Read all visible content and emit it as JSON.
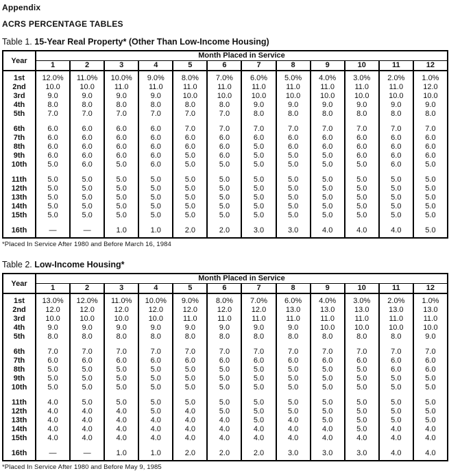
{
  "page": {
    "appendix_label": "Appendix",
    "main_heading": "ACRS PERCENTAGE TABLES"
  },
  "tables": [
    {
      "caption_prefix": "Table 1.",
      "caption_title": "15-Year Real Property* (Other Than Low-Income Housing)",
      "year_header": "Year",
      "month_header": "Month Placed in Service",
      "month_columns": [
        "1",
        "2",
        "3",
        "4",
        "5",
        "6",
        "7",
        "8",
        "9",
        "10",
        "11",
        "12"
      ],
      "row_groups": [
        {
          "rows": [
            {
              "label": "1st",
              "values": [
                "12.0%",
                "11.0%",
                "10.0%",
                "9.0%",
                "8.0%",
                "7.0%",
                "6.0%",
                "5.0%",
                "4.0%",
                "3.0%",
                "2.0%",
                "1.0%"
              ]
            },
            {
              "label": "2nd",
              "values": [
                "10.0",
                "10.0",
                "11.0",
                "11.0",
                "11.0",
                "11.0",
                "11.0",
                "11.0",
                "11.0",
                "11.0",
                "11.0",
                "12.0"
              ]
            },
            {
              "label": "3rd",
              "values": [
                "9.0",
                "9.0",
                "9.0",
                "9.0",
                "10.0",
                "10.0",
                "10.0",
                "10.0",
                "10.0",
                "10.0",
                "10.0",
                "10.0"
              ]
            },
            {
              "label": "4th",
              "values": [
                "8.0",
                "8.0",
                "8.0",
                "8.0",
                "8.0",
                "8.0",
                "9.0",
                "9.0",
                "9.0",
                "9.0",
                "9.0",
                "9.0"
              ]
            },
            {
              "label": "5th",
              "values": [
                "7.0",
                "7.0",
                "7.0",
                "7.0",
                "7.0",
                "7.0",
                "8.0",
                "8.0",
                "8.0",
                "8.0",
                "8.0",
                "8.0"
              ]
            }
          ]
        },
        {
          "rows": [
            {
              "label": "6th",
              "values": [
                "6.0",
                "6.0",
                "6.0",
                "6.0",
                "7.0",
                "7.0",
                "7.0",
                "7.0",
                "7.0",
                "7.0",
                "7.0",
                "7.0"
              ]
            },
            {
              "label": "7th",
              "values": [
                "6.0",
                "6.0",
                "6.0",
                "6.0",
                "6.0",
                "6.0",
                "6.0",
                "6.0",
                "6.0",
                "6.0",
                "6.0",
                "6.0"
              ]
            },
            {
              "label": "8th",
              "values": [
                "6.0",
                "6.0",
                "6.0",
                "6.0",
                "6.0",
                "6.0",
                "5.0",
                "6.0",
                "6.0",
                "6.0",
                "6.0",
                "6.0"
              ]
            },
            {
              "label": "9th",
              "values": [
                "6.0",
                "6.0",
                "6.0",
                "6.0",
                "5.0",
                "6.0",
                "5.0",
                "5.0",
                "5.0",
                "6.0",
                "6.0",
                "6.0"
              ]
            },
            {
              "label": "10th",
              "values": [
                "5.0",
                "6.0",
                "5.0",
                "6.0",
                "5.0",
                "5.0",
                "5.0",
                "5.0",
                "5.0",
                "5.0",
                "6.0",
                "5.0"
              ]
            }
          ]
        },
        {
          "rows": [
            {
              "label": "11th",
              "values": [
                "5.0",
                "5.0",
                "5.0",
                "5.0",
                "5.0",
                "5.0",
                "5.0",
                "5.0",
                "5.0",
                "5.0",
                "5.0",
                "5.0"
              ]
            },
            {
              "label": "12th",
              "values": [
                "5.0",
                "5.0",
                "5.0",
                "5.0",
                "5.0",
                "5.0",
                "5.0",
                "5.0",
                "5.0",
                "5.0",
                "5.0",
                "5.0"
              ]
            },
            {
              "label": "13th",
              "values": [
                "5.0",
                "5.0",
                "5.0",
                "5.0",
                "5.0",
                "5.0",
                "5.0",
                "5.0",
                "5.0",
                "5.0",
                "5.0",
                "5.0"
              ]
            },
            {
              "label": "14th",
              "values": [
                "5.0",
                "5.0",
                "5.0",
                "5.0",
                "5.0",
                "5.0",
                "5.0",
                "5.0",
                "5.0",
                "5.0",
                "5.0",
                "5.0"
              ]
            },
            {
              "label": "15th",
              "values": [
                "5.0",
                "5.0",
                "5.0",
                "5.0",
                "5.0",
                "5.0",
                "5.0",
                "5.0",
                "5.0",
                "5.0",
                "5.0",
                "5.0"
              ]
            }
          ]
        },
        {
          "rows": [
            {
              "label": "16th",
              "values": [
                "—",
                "—",
                "1.0",
                "1.0",
                "2.0",
                "2.0",
                "3.0",
                "3.0",
                "4.0",
                "4.0",
                "4.0",
                "5.0"
              ]
            }
          ]
        }
      ],
      "footnote": "*Placed In Service After 1980 and Before March 16, 1984"
    },
    {
      "caption_prefix": "Table 2.",
      "caption_title": "Low-Income Housing*",
      "year_header": "Year",
      "month_header": "Month Placed in Service",
      "month_columns": [
        "1",
        "2",
        "3",
        "4",
        "5",
        "6",
        "7",
        "8",
        "9",
        "10",
        "11",
        "12"
      ],
      "row_groups": [
        {
          "rows": [
            {
              "label": "1st",
              "values": [
                "13.0%",
                "12.0%",
                "11.0%",
                "10.0%",
                "9.0%",
                "8.0%",
                "7.0%",
                "6.0%",
                "4.0%",
                "3.0%",
                "2.0%",
                "1.0%"
              ]
            },
            {
              "label": "2nd",
              "values": [
                "12.0",
                "12.0",
                "12.0",
                "12.0",
                "12.0",
                "12.0",
                "12.0",
                "13.0",
                "13.0",
                "13.0",
                "13.0",
                "13.0"
              ]
            },
            {
              "label": "3rd",
              "values": [
                "10.0",
                "10.0",
                "10.0",
                "10.0",
                "11.0",
                "11.0",
                "11.0",
                "11.0",
                "11.0",
                "11.0",
                "11.0",
                "11.0"
              ]
            },
            {
              "label": "4th",
              "values": [
                "9.0",
                "9.0",
                "9.0",
                "9.0",
                "9.0",
                "9.0",
                "9.0",
                "9.0",
                "10.0",
                "10.0",
                "10.0",
                "10.0"
              ]
            },
            {
              "label": "5th",
              "values": [
                "8.0",
                "8.0",
                "8.0",
                "8.0",
                "8.0",
                "8.0",
                "8.0",
                "8.0",
                "8.0",
                "8.0",
                "8.0",
                "9.0"
              ]
            }
          ]
        },
        {
          "rows": [
            {
              "label": "6th",
              "values": [
                "7.0",
                "7.0",
                "7.0",
                "7.0",
                "7.0",
                "7.0",
                "7.0",
                "7.0",
                "7.0",
                "7.0",
                "7.0",
                "7.0"
              ]
            },
            {
              "label": "7th",
              "values": [
                "6.0",
                "6.0",
                "6.0",
                "6.0",
                "6.0",
                "6.0",
                "6.0",
                "6.0",
                "6.0",
                "6.0",
                "6.0",
                "6.0"
              ]
            },
            {
              "label": "8th",
              "values": [
                "5.0",
                "5.0",
                "5.0",
                "5.0",
                "5.0",
                "5.0",
                "5.0",
                "5.0",
                "5.0",
                "5.0",
                "6.0",
                "6.0"
              ]
            },
            {
              "label": "9th",
              "values": [
                "5.0",
                "5.0",
                "5.0",
                "5.0",
                "5.0",
                "5.0",
                "5.0",
                "5.0",
                "5.0",
                "5.0",
                "5.0",
                "5.0"
              ]
            },
            {
              "label": "10th",
              "values": [
                "5.0",
                "5.0",
                "5.0",
                "5.0",
                "5.0",
                "5.0",
                "5.0",
                "5.0",
                "5.0",
                "5.0",
                "5.0",
                "5.0"
              ]
            }
          ]
        },
        {
          "rows": [
            {
              "label": "11th",
              "values": [
                "4.0",
                "5.0",
                "5.0",
                "5.0",
                "5.0",
                "5.0",
                "5.0",
                "5.0",
                "5.0",
                "5.0",
                "5.0",
                "5.0"
              ]
            },
            {
              "label": "12th",
              "values": [
                "4.0",
                "4.0",
                "4.0",
                "5.0",
                "4.0",
                "5.0",
                "5.0",
                "5.0",
                "5.0",
                "5.0",
                "5.0",
                "5.0"
              ]
            },
            {
              "label": "13th",
              "values": [
                "4.0",
                "4.0",
                "4.0",
                "4.0",
                "4.0",
                "4.0",
                "5.0",
                "4.0",
                "5.0",
                "5.0",
                "5.0",
                "5.0"
              ]
            },
            {
              "label": "14th",
              "values": [
                "4.0",
                "4.0",
                "4.0",
                "4.0",
                "4.0",
                "4.0",
                "4.0",
                "4.0",
                "4.0",
                "5.0",
                "4.0",
                "4.0"
              ]
            },
            {
              "label": "15th",
              "values": [
                "4.0",
                "4.0",
                "4.0",
                "4.0",
                "4.0",
                "4.0",
                "4.0",
                "4.0",
                "4.0",
                "4.0",
                "4.0",
                "4.0"
              ]
            }
          ]
        },
        {
          "rows": [
            {
              "label": "16th",
              "values": [
                "—",
                "—",
                "1.0",
                "1.0",
                "2.0",
                "2.0",
                "2.0",
                "3.0",
                "3.0",
                "3.0",
                "4.0",
                "4.0"
              ]
            }
          ]
        }
      ],
      "footnote": "*Placed In Service After 1980 and Before May 9, 1985"
    }
  ]
}
